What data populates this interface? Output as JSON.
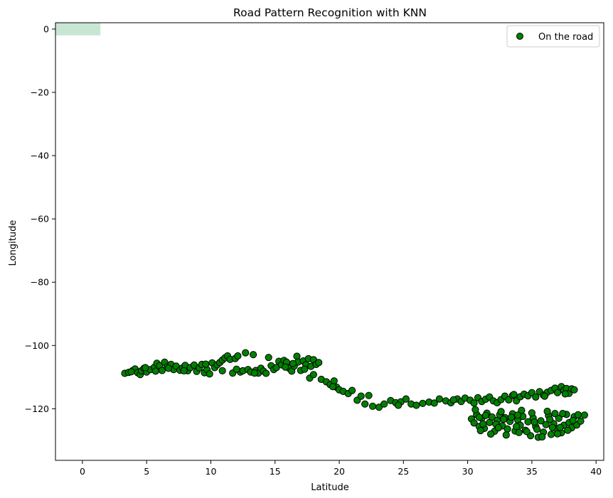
{
  "chart_data": {
    "type": "scatter",
    "title": "Road Pattern Recognition with KNN",
    "xlabel": "Latitude",
    "ylabel": "Longitude",
    "xlim": [
      -2.1,
      40.6
    ],
    "ylim": [
      -136.3,
      2.0
    ],
    "xticks": [
      0,
      5,
      10,
      15,
      20,
      25,
      30,
      35,
      40
    ],
    "yticks": [
      0,
      -20,
      -40,
      -60,
      -80,
      -100,
      -120
    ],
    "grid": false,
    "legend": {
      "placement": "top-right",
      "entries": [
        {
          "label": "On the road",
          "color": "#008000",
          "edge": "#000000"
        }
      ]
    },
    "highlight_region": {
      "x": [
        -2.1,
        1.4
      ],
      "y": [
        -2.0,
        2.0
      ],
      "color": "#c8e6d4"
    },
    "series": [
      {
        "name": "On the road",
        "color": "#008000",
        "edgecolor": "#000000",
        "points": [
          [
            3.3,
            -108.8
          ],
          [
            3.6,
            -108.5
          ],
          [
            3.9,
            -108.0
          ],
          [
            4.1,
            -107.4
          ],
          [
            4.3,
            -108.6
          ],
          [
            4.5,
            -109.2
          ],
          [
            4.6,
            -108.0
          ],
          [
            4.8,
            -107.2
          ],
          [
            5.0,
            -108.4
          ],
          [
            5.3,
            -107.6
          ],
          [
            5.6,
            -106.9
          ],
          [
            5.8,
            -105.6
          ],
          [
            6.0,
            -106.4
          ],
          [
            6.2,
            -107.9
          ],
          [
            6.4,
            -105.3
          ],
          [
            6.6,
            -106.8
          ],
          [
            6.9,
            -106.0
          ],
          [
            7.1,
            -107.6
          ],
          [
            7.3,
            -106.5
          ],
          [
            7.6,
            -107.8
          ],
          [
            7.8,
            -107.1
          ],
          [
            8.0,
            -106.3
          ],
          [
            8.2,
            -108.0
          ],
          [
            8.4,
            -107.0
          ],
          [
            8.7,
            -106.2
          ],
          [
            8.9,
            -108.2
          ],
          [
            9.1,
            -107.1
          ],
          [
            9.3,
            -106.0
          ],
          [
            9.5,
            -108.6
          ],
          [
            9.7,
            -107.6
          ],
          [
            9.9,
            -109.0
          ],
          [
            10.1,
            -105.5
          ],
          [
            10.3,
            -107.0
          ],
          [
            10.5,
            -106.1
          ],
          [
            10.7,
            -105.4
          ],
          [
            10.9,
            -104.6
          ],
          [
            11.1,
            -103.9
          ],
          [
            11.3,
            -103.3
          ],
          [
            11.5,
            -104.4
          ],
          [
            11.7,
            -108.7
          ],
          [
            11.9,
            -104.1
          ],
          [
            12.1,
            -103.3
          ],
          [
            12.3,
            -108.4
          ],
          [
            12.5,
            -108.0
          ],
          [
            12.7,
            -102.3
          ],
          [
            12.9,
            -107.6
          ],
          [
            13.1,
            -108.4
          ],
          [
            13.3,
            -102.9
          ],
          [
            13.5,
            -107.9
          ],
          [
            13.7,
            -108.7
          ],
          [
            13.9,
            -107.2
          ],
          [
            14.1,
            -108.1
          ],
          [
            14.3,
            -108.8
          ],
          [
            14.5,
            -103.8
          ],
          [
            14.7,
            -106.4
          ],
          [
            14.9,
            -107.6
          ],
          [
            15.1,
            -107.0
          ],
          [
            15.3,
            -105.0
          ],
          [
            15.5,
            -106.1
          ],
          [
            15.7,
            -104.7
          ],
          [
            15.9,
            -105.3
          ],
          [
            16.1,
            -107.2
          ],
          [
            16.3,
            -108.1
          ],
          [
            16.5,
            -106.5
          ],
          [
            16.7,
            -103.4
          ],
          [
            16.8,
            -105.2
          ],
          [
            17.0,
            -107.9
          ],
          [
            17.2,
            -104.9
          ],
          [
            17.4,
            -106.1
          ],
          [
            17.6,
            -104.2
          ],
          [
            17.8,
            -106.6
          ],
          [
            18.0,
            -104.5
          ],
          [
            18.2,
            -106.0
          ],
          [
            17.7,
            -110.3
          ],
          [
            18.0,
            -109.2
          ],
          [
            18.6,
            -110.7
          ],
          [
            19.0,
            -111.5
          ],
          [
            19.3,
            -112.4
          ],
          [
            19.6,
            -111.2
          ],
          [
            19.8,
            -113.2
          ],
          [
            20.0,
            -114.0
          ],
          [
            20.3,
            -114.5
          ],
          [
            20.7,
            -115.2
          ],
          [
            21.0,
            -114.2
          ],
          [
            21.4,
            -117.3
          ],
          [
            21.7,
            -116.0
          ],
          [
            22.0,
            -118.5
          ],
          [
            22.3,
            -115.8
          ],
          [
            22.6,
            -119.2
          ],
          [
            23.1,
            -119.5
          ],
          [
            23.5,
            -118.5
          ],
          [
            24.0,
            -117.4
          ],
          [
            24.4,
            -118.1
          ],
          [
            24.8,
            -117.8
          ],
          [
            25.2,
            -116.9
          ],
          [
            25.6,
            -118.5
          ],
          [
            26.0,
            -118.9
          ],
          [
            26.5,
            -118.3
          ],
          [
            27.0,
            -117.9
          ],
          [
            27.4,
            -118.2
          ],
          [
            27.8,
            -116.9
          ],
          [
            28.3,
            -117.5
          ],
          [
            28.7,
            -118.1
          ],
          [
            29.2,
            -116.9
          ],
          [
            29.5,
            -117.7
          ],
          [
            29.8,
            -116.6
          ],
          [
            30.2,
            -117.3
          ],
          [
            30.5,
            -118.2
          ],
          [
            30.8,
            -116.5
          ],
          [
            31.1,
            -117.7
          ],
          [
            31.4,
            -117.0
          ],
          [
            31.7,
            -116.3
          ],
          [
            32.0,
            -117.5
          ],
          [
            32.3,
            -118.1
          ],
          [
            32.6,
            -117.1
          ],
          [
            32.9,
            -116.0
          ],
          [
            33.2,
            -117.2
          ],
          [
            33.5,
            -115.8
          ],
          [
            33.8,
            -117.5
          ],
          [
            34.1,
            -116.2
          ],
          [
            34.4,
            -115.4
          ],
          [
            34.7,
            -115.9
          ],
          [
            35.0,
            -114.9
          ],
          [
            35.3,
            -116.3
          ],
          [
            35.6,
            -114.6
          ],
          [
            35.9,
            -115.7
          ],
          [
            36.2,
            -114.8
          ],
          [
            36.5,
            -114.2
          ],
          [
            36.8,
            -113.5
          ],
          [
            37.0,
            -114.9
          ],
          [
            37.3,
            -113.0
          ],
          [
            37.5,
            -114.2
          ],
          [
            37.7,
            -113.6
          ],
          [
            37.9,
            -115.1
          ],
          [
            38.1,
            -113.7
          ],
          [
            38.3,
            -114.0
          ],
          [
            30.3,
            -123.2
          ],
          [
            30.5,
            -124.5
          ],
          [
            30.7,
            -121.8
          ],
          [
            30.9,
            -125.6
          ],
          [
            31.1,
            -123.0
          ],
          [
            31.3,
            -126.2
          ],
          [
            31.5,
            -121.4
          ],
          [
            31.7,
            -124.3
          ],
          [
            31.9,
            -122.6
          ],
          [
            32.1,
            -127.1
          ],
          [
            32.3,
            -123.7
          ],
          [
            32.5,
            -121.9
          ],
          [
            32.7,
            -125.4
          ],
          [
            32.9,
            -122.8
          ],
          [
            33.1,
            -126.4
          ],
          [
            33.3,
            -124.0
          ],
          [
            33.5,
            -121.6
          ],
          [
            33.7,
            -127.0
          ],
          [
            33.9,
            -123.5
          ],
          [
            34.1,
            -125.2
          ],
          [
            34.3,
            -122.4
          ],
          [
            34.5,
            -126.8
          ],
          [
            34.7,
            -124.1
          ],
          [
            34.9,
            -128.5
          ],
          [
            35.1,
            -122.9
          ],
          [
            35.3,
            -125.6
          ],
          [
            35.5,
            -129.0
          ],
          [
            35.7,
            -123.8
          ],
          [
            35.9,
            -127.4
          ],
          [
            36.1,
            -125.0
          ],
          [
            36.3,
            -122.2
          ],
          [
            36.5,
            -128.1
          ],
          [
            36.7,
            -124.7
          ],
          [
            36.9,
            -126.3
          ],
          [
            37.1,
            -123.0
          ],
          [
            37.3,
            -127.6
          ],
          [
            37.5,
            -125.2
          ],
          [
            37.7,
            -121.8
          ],
          [
            37.9,
            -124.4
          ],
          [
            38.1,
            -126.0
          ],
          [
            38.3,
            -122.5
          ],
          [
            38.5,
            -125.1
          ],
          [
            38.8,
            -123.9
          ],
          [
            39.1,
            -122.0
          ],
          [
            30.6,
            -120.3
          ],
          [
            31.0,
            -126.9
          ],
          [
            31.4,
            -122.1
          ],
          [
            31.8,
            -128.0
          ],
          [
            32.2,
            -124.9
          ],
          [
            32.6,
            -120.9
          ],
          [
            33.0,
            -128.3
          ],
          [
            33.4,
            -122.7
          ],
          [
            33.8,
            -125.6
          ],
          [
            34.2,
            -120.5
          ],
          [
            34.6,
            -127.2
          ],
          [
            35.0,
            -121.3
          ],
          [
            35.4,
            -126.5
          ],
          [
            35.8,
            -128.9
          ],
          [
            36.2,
            -120.8
          ],
          [
            36.6,
            -125.9
          ],
          [
            37.0,
            -127.9
          ],
          [
            37.4,
            -121.5
          ],
          [
            37.8,
            -126.8
          ],
          [
            38.2,
            -123.7
          ],
          [
            3.8,
            -108.3
          ],
          [
            4.9,
            -107.0
          ],
          [
            5.7,
            -108.1
          ],
          [
            6.7,
            -107.2
          ],
          [
            7.9,
            -108.0
          ],
          [
            9.6,
            -105.9
          ],
          [
            10.9,
            -108.0
          ],
          [
            12.0,
            -107.5
          ],
          [
            13.4,
            -108.7
          ],
          [
            15.8,
            -106.8
          ],
          [
            16.4,
            -105.7
          ],
          [
            17.3,
            -107.5
          ],
          [
            18.4,
            -105.4
          ],
          [
            19.5,
            -113.0
          ],
          [
            24.6,
            -118.9
          ],
          [
            28.9,
            -117.2
          ],
          [
            33.6,
            -115.5
          ],
          [
            36.0,
            -116.0
          ],
          [
            37.6,
            -115.3
          ],
          [
            31.2,
            -124.8
          ],
          [
            32.4,
            -126.0
          ],
          [
            33.9,
            -122.0
          ],
          [
            35.2,
            -124.2
          ],
          [
            36.4,
            -123.4
          ],
          [
            37.2,
            -125.9
          ],
          [
            38.6,
            -121.9
          ],
          [
            34.0,
            -127.5
          ],
          [
            32.8,
            -123.3
          ],
          [
            30.9,
            -122.7
          ],
          [
            36.8,
            -121.5
          ]
        ]
      }
    ]
  }
}
